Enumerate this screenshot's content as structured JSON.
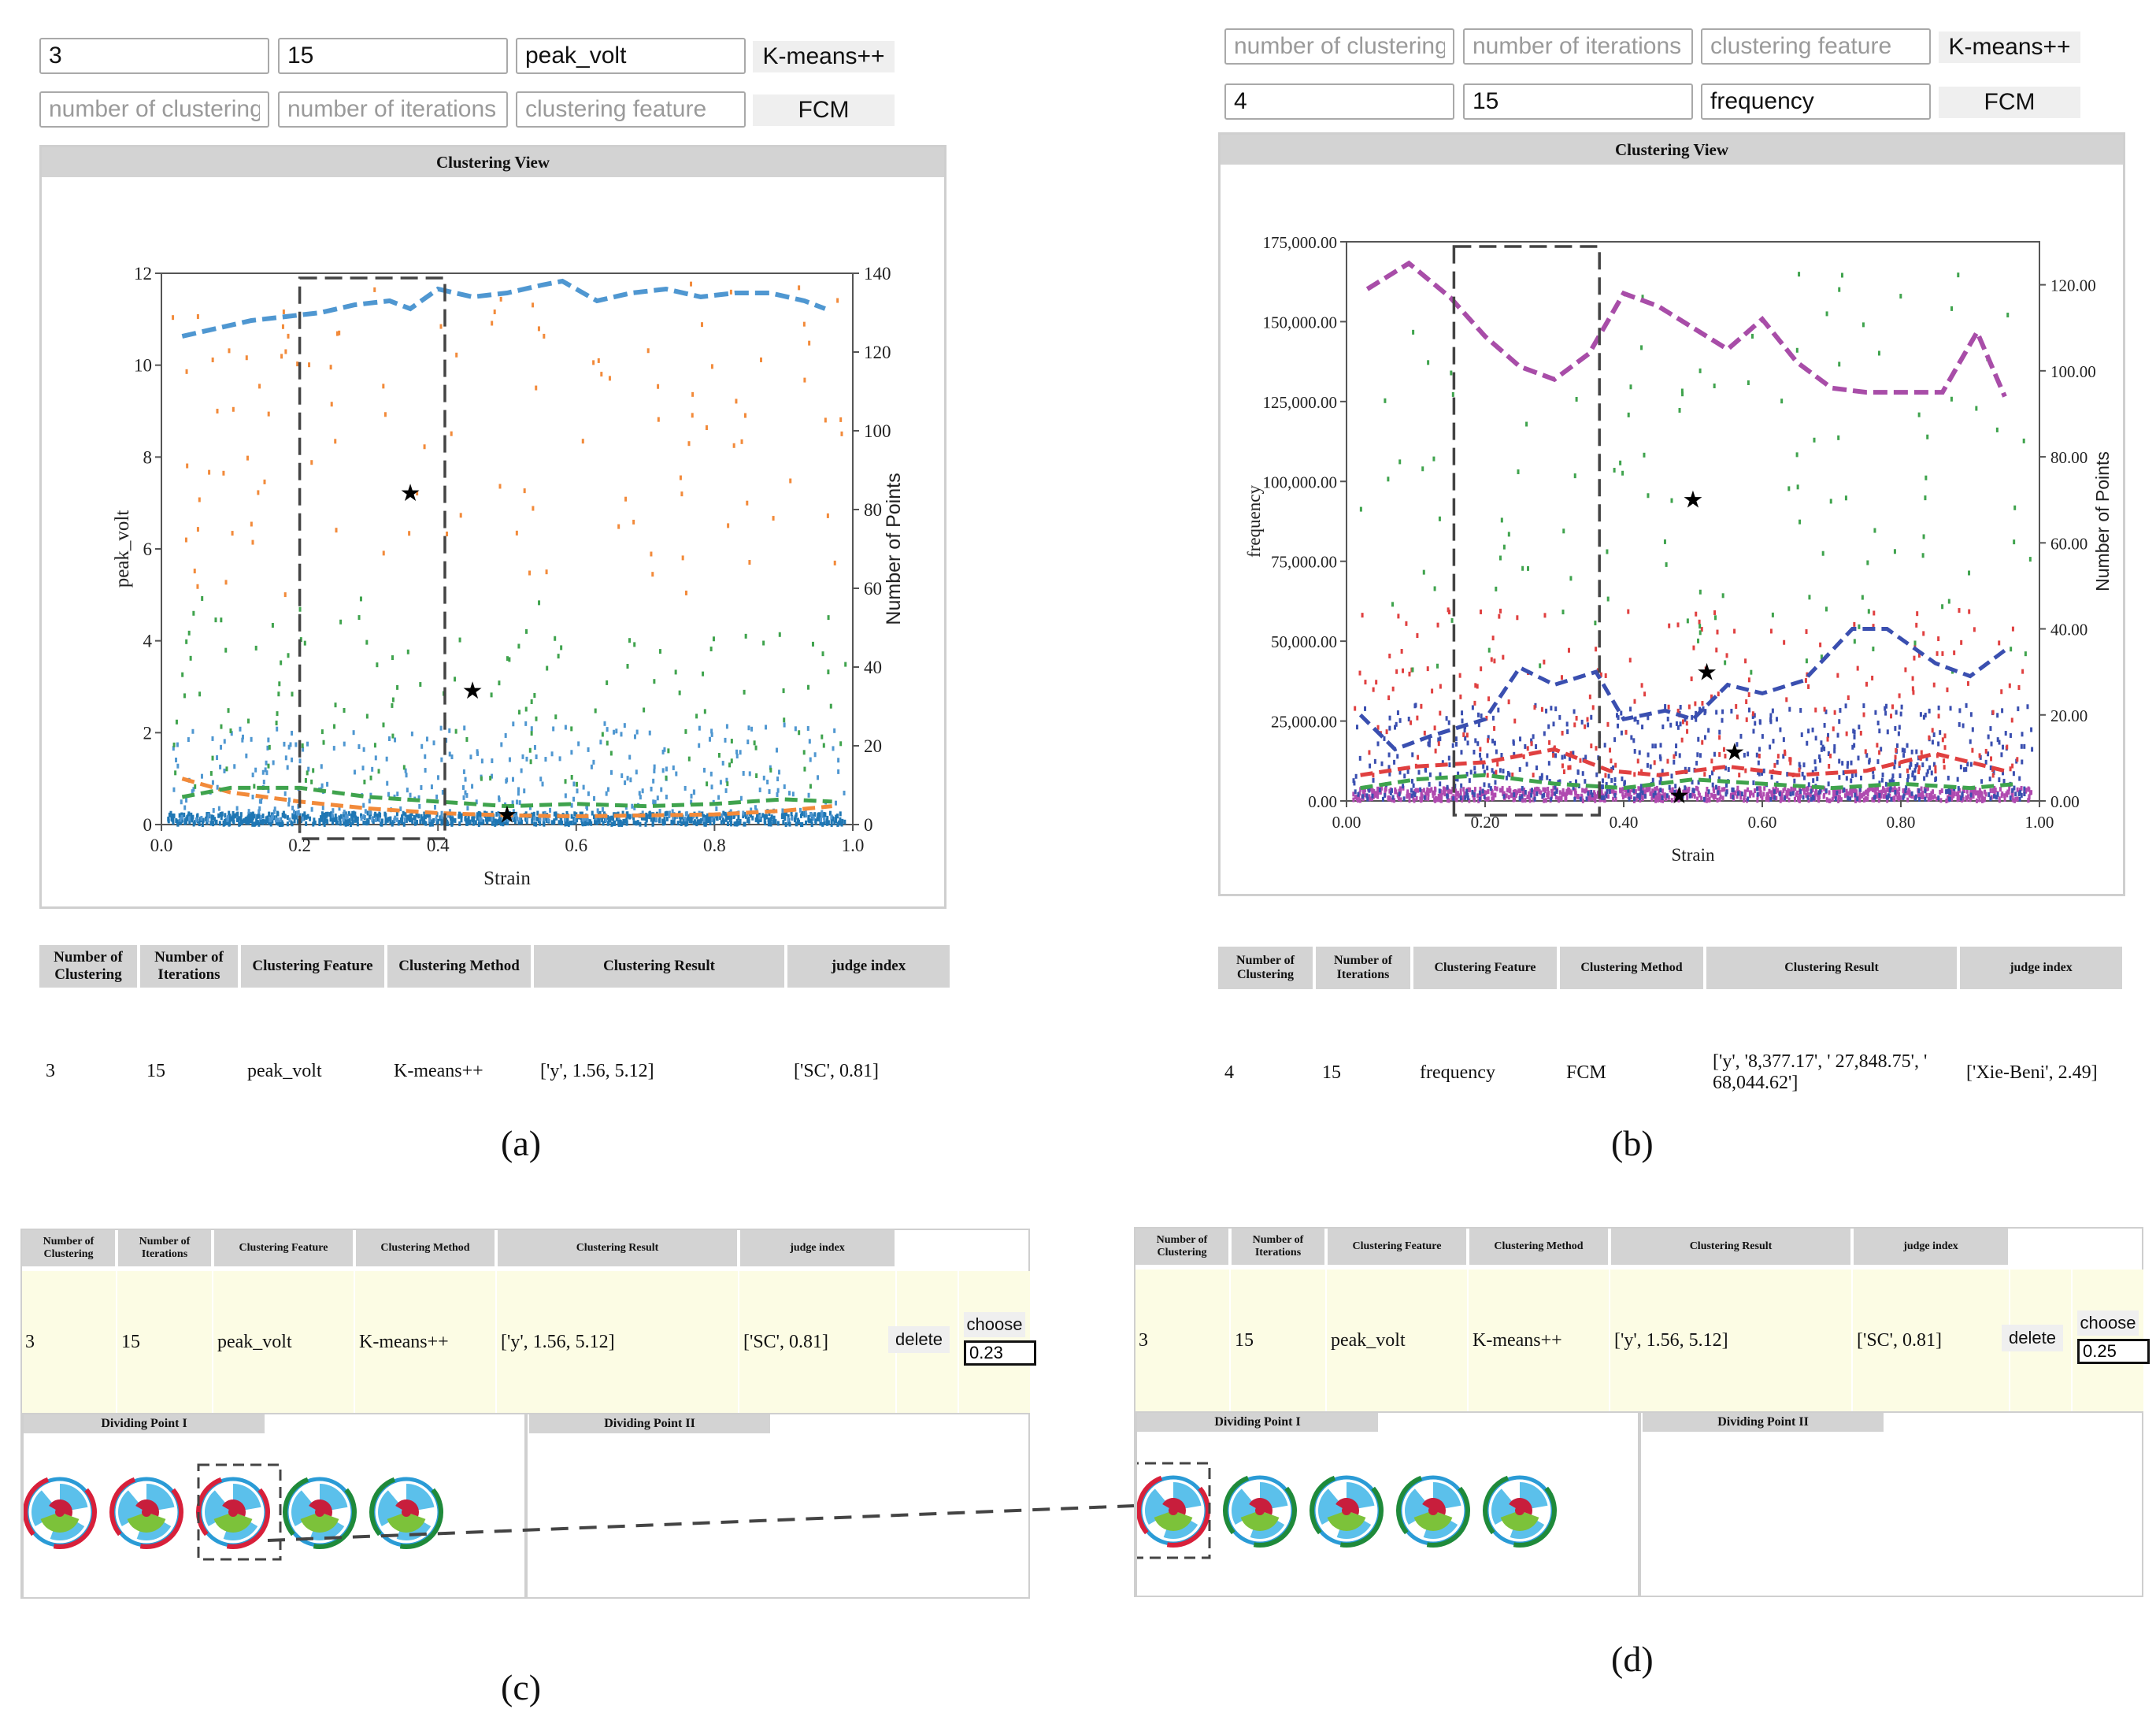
{
  "panel_a": {
    "inputs_row1": [
      "3",
      "15",
      "peak_volt"
    ],
    "method_row1": "K-means++",
    "placeholders_row2": [
      "number of clustering",
      "number of iterations",
      "clustering feature"
    ],
    "method_row2": "FCM",
    "view_title": "Clustering View",
    "table": {
      "headers": [
        "Number of Clustering",
        "Number of Iterations",
        "Clustering Feature",
        "Clustering Method",
        "Clustering Result",
        "judge index"
      ],
      "row": [
        "3",
        "15",
        "peak_volt",
        "K-means++",
        "['y', 1.56, 5.12]",
        "['SC', 0.81]"
      ]
    },
    "label": "(a)"
  },
  "panel_b": {
    "placeholders_row1": [
      "number of clustering",
      "number of iterations",
      "clustering feature"
    ],
    "method_row1": "K-means++",
    "inputs_row2": [
      "4",
      "15",
      "frequency"
    ],
    "method_row2": "FCM",
    "view_title": "Clustering View",
    "table": {
      "headers": [
        "Number of Clustering",
        "Number of Iterations",
        "Clustering Feature",
        "Clustering Method",
        "Clustering Result",
        "judge index"
      ],
      "row": [
        "4",
        "15",
        "frequency",
        "FCM",
        "['y', '8,377.17', ' 27,848.75', ' 68,044.62']",
        "['Xie-Beni', 2.49]"
      ]
    },
    "label": "(b)"
  },
  "panel_c": {
    "headers": [
      "Number of Clustering",
      "Number of Iterations",
      "Clustering Feature",
      "Clustering Method",
      "Clustering Result",
      "judge index"
    ],
    "row": [
      "3",
      "15",
      "peak_volt",
      "K-means++",
      "['y', 1.56, 5.12]",
      "['SC', 0.81]"
    ],
    "delete_label": "delete",
    "choose_label": "choose",
    "choose_value": "0.23",
    "dividing1": "Dividing Point I",
    "dividing2": "Dividing Point II",
    "label": "(c)"
  },
  "panel_d": {
    "headers": [
      "Number of Clustering",
      "Number of Iterations",
      "Clustering Feature",
      "Clustering Method",
      "Clustering Result",
      "judge index"
    ],
    "row": [
      "3",
      "15",
      "peak_volt",
      "K-means++",
      "['y', 1.56, 5.12]",
      "['SC', 0.81]"
    ],
    "delete_label": "delete",
    "choose_label": "choose",
    "choose_value": "0.25",
    "dividing1": "Dividing Point I",
    "dividing2": "Dividing Point II",
    "label": "(d)"
  },
  "chart_data": [
    {
      "type": "scatter",
      "panel": "a",
      "xlabel": "Strain",
      "ylabel": "peak_volt",
      "y2label": "Number of Points",
      "xlim": [
        0,
        1
      ],
      "ylim": [
        0,
        12
      ],
      "y2lim": [
        0,
        140
      ],
      "xticks": [
        "0.0",
        "0.2",
        "0.4",
        "0.6",
        "0.8",
        "1.0"
      ],
      "yticks": [
        "0",
        "2",
        "4",
        "6",
        "8",
        "10",
        "12"
      ],
      "y2ticks": [
        "0",
        "20",
        "40",
        "60",
        "80",
        "100",
        "120",
        "140"
      ],
      "centroids": [
        [
          0.36,
          7.2
        ],
        [
          0.45,
          2.9
        ],
        [
          0.5,
          0.2
        ]
      ],
      "count_line": {
        "color": "#4f97d1",
        "x": [
          0.03,
          0.08,
          0.13,
          0.18,
          0.23,
          0.28,
          0.33,
          0.36,
          0.4,
          0.45,
          0.5,
          0.55,
          0.58,
          0.63,
          0.68,
          0.73,
          0.78,
          0.83,
          0.88,
          0.93,
          0.96
        ],
        "y": [
          124,
          126,
          128,
          129,
          130,
          132,
          133,
          131,
          136,
          134,
          135,
          137,
          138,
          133,
          135,
          136,
          134,
          135,
          135,
          133,
          131
        ]
      },
      "series": [
        {
          "name": "",
          "color": "#f28a3a",
          "trend": [
            [
              0.03,
              1.0
            ],
            [
              0.1,
              0.7
            ],
            [
              0.2,
              0.5
            ],
            [
              0.3,
              0.35
            ],
            [
              0.4,
              0.25
            ],
            [
              0.5,
              0.2
            ],
            [
              0.6,
              0.18
            ],
            [
              0.7,
              0.2
            ],
            [
              0.8,
              0.22
            ],
            [
              0.9,
              0.3
            ],
            [
              0.97,
              0.4
            ]
          ]
        },
        {
          "name": "",
          "color": "#3fa34d",
          "trend": [
            [
              0.03,
              0.6
            ],
            [
              0.1,
              0.8
            ],
            [
              0.2,
              0.8
            ],
            [
              0.3,
              0.6
            ],
            [
              0.4,
              0.5
            ],
            [
              0.5,
              0.4
            ],
            [
              0.6,
              0.45
            ],
            [
              0.7,
              0.4
            ],
            [
              0.8,
              0.45
            ],
            [
              0.9,
              0.55
            ],
            [
              0.97,
              0.5
            ]
          ]
        },
        {
          "name": "",
          "color": "#1f77b4",
          "trend": []
        }
      ]
    },
    {
      "type": "scatter",
      "panel": "b",
      "xlabel": "Strain",
      "ylabel": "frequency",
      "y2label": "Number of Points",
      "xlim": [
        0,
        1
      ],
      "ylim": [
        0,
        175000
      ],
      "y2lim": [
        0,
        130
      ],
      "xticks": [
        "0.00",
        "0.20",
        "0.40",
        "0.60",
        "0.80",
        "1.00"
      ],
      "yticks": [
        "0.00",
        "25,000.00",
        "50,000.00",
        "75,000.00",
        "100,000.00",
        "125,000.00",
        "150,000.00",
        "175,000.00"
      ],
      "y2ticks": [
        "0.00",
        "20.00",
        "40.00",
        "60.00",
        "80.00",
        "100.00",
        "120.00"
      ],
      "centroids": [
        [
          0.5,
          94000
        ],
        [
          0.52,
          40000
        ],
        [
          0.56,
          15000
        ],
        [
          0.48,
          1500
        ]
      ],
      "count_line": {
        "color": "#a84da8",
        "x": [
          0.03,
          0.09,
          0.15,
          0.2,
          0.25,
          0.3,
          0.35,
          0.4,
          0.45,
          0.5,
          0.55,
          0.6,
          0.65,
          0.7,
          0.75,
          0.8,
          0.86,
          0.91,
          0.95
        ],
        "y": [
          119,
          125,
          117,
          108,
          101,
          98,
          104,
          118,
          115,
          110,
          105,
          112,
          102,
          96,
          95,
          95,
          95,
          109,
          94
        ]
      },
      "series": [
        {
          "name": "",
          "color": "#3a4fb0",
          "trend": [
            [
              0.02,
              20
            ],
            [
              0.07,
              12
            ],
            [
              0.12,
              15
            ],
            [
              0.2,
              19
            ],
            [
              0.25,
              31
            ],
            [
              0.3,
              27
            ],
            [
              0.36,
              30
            ],
            [
              0.4,
              19
            ],
            [
              0.46,
              21
            ],
            [
              0.5,
              19
            ],
            [
              0.55,
              27
            ],
            [
              0.6,
              25
            ],
            [
              0.66,
              28
            ],
            [
              0.73,
              40
            ],
            [
              0.78,
              40
            ],
            [
              0.85,
              32
            ],
            [
              0.9,
              29
            ],
            [
              0.95,
              35
            ]
          ]
        },
        {
          "name": "",
          "color": "#e04040",
          "trend": [
            [
              0.02,
              6
            ],
            [
              0.1,
              8
            ],
            [
              0.2,
              9
            ],
            [
              0.3,
              12
            ],
            [
              0.38,
              7
            ],
            [
              0.45,
              6
            ],
            [
              0.55,
              8
            ],
            [
              0.65,
              6
            ],
            [
              0.75,
              7
            ],
            [
              0.85,
              11
            ],
            [
              0.95,
              7
            ]
          ]
        },
        {
          "name": "",
          "color": "#3fa34d",
          "trend": [
            [
              0.02,
              3
            ],
            [
              0.1,
              5
            ],
            [
              0.2,
              6
            ],
            [
              0.3,
              4
            ],
            [
              0.4,
              3
            ],
            [
              0.5,
              5
            ],
            [
              0.6,
              4
            ],
            [
              0.7,
              3
            ],
            [
              0.8,
              4
            ],
            [
              0.9,
              3
            ],
            [
              0.97,
              4
            ]
          ]
        },
        {
          "name": "",
          "color": "#b04ab0",
          "trend": []
        }
      ]
    }
  ]
}
